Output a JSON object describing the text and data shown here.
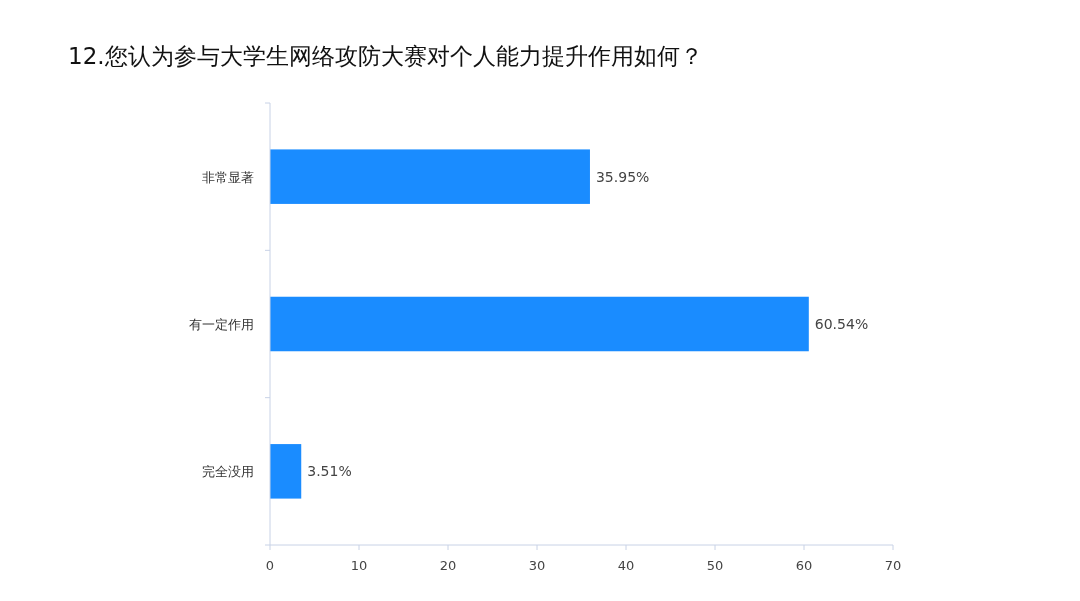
{
  "chart_data": {
    "type": "bar",
    "orientation": "horizontal",
    "title": "12.您认为参与大学生网络攻防大赛对个人能力提升作用如何？",
    "categories": [
      "非常显著",
      "有一定作用",
      "完全没用"
    ],
    "values": [
      35.95,
      60.54,
      3.51
    ],
    "value_labels": [
      "35.95%",
      "60.54%",
      "3.51%"
    ],
    "color": "#1a8cff",
    "xlim": [
      0,
      70
    ],
    "xticks": [
      0,
      10,
      20,
      30,
      40,
      50,
      60,
      70
    ]
  }
}
